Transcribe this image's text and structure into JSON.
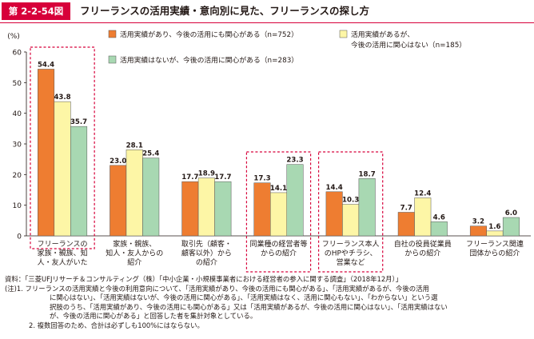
{
  "figure": {
    "number": "第 2-2-54図",
    "title": "フリーランスの活用実績・意向別に見た、フリーランスの探し方"
  },
  "chart_data": {
    "type": "bar",
    "ylabel": "(%)",
    "ylim": [
      0,
      60
    ],
    "yticks": [
      0,
      10,
      20,
      30,
      40,
      50,
      60
    ],
    "grid": false,
    "legend_placement": "top-right",
    "categories": [
      [
        "フリーランスの",
        "家族・親族、知",
        "人・友人がいた"
      ],
      [
        "家族・親族、",
        "知人・友人からの",
        "紹介"
      ],
      [
        "取引先（顧客・",
        "顧客以外）から",
        "の紹介"
      ],
      [
        "同業種の経営者等",
        "からの紹介"
      ],
      [
        "フリーランス本人",
        "のHPやチラシ、",
        "営業など"
      ],
      [
        "自社の役員従業員",
        "からの紹介"
      ],
      [
        "フリーランス関連",
        "団体からの紹介"
      ]
    ],
    "series": [
      {
        "name": "活用実績があり、今後の活用にも関心がある（n=752）",
        "color": "#ee7d31",
        "values": [
          54.4,
          23.0,
          17.7,
          17.3,
          14.4,
          7.7,
          3.2
        ]
      },
      {
        "name": "活用実績があるが、今後の活用に関心はない（n=185）",
        "color": "#fdf6a6",
        "values": [
          43.8,
          28.1,
          18.9,
          14.1,
          10.3,
          12.4,
          1.6
        ]
      },
      {
        "name": "活用実績はないが、今後の活用に関心がある（n=283）",
        "color": "#a8d8b2",
        "values": [
          35.7,
          25.4,
          17.7,
          23.3,
          18.7,
          4.6,
          6.0
        ]
      }
    ],
    "legend": [
      [
        "活用実績があり、今後の活用にも関心がある（n=752）"
      ],
      [
        "活用実績があるが、",
        "今後の活用に関心はない（n=185）"
      ],
      [
        "活用実績はないが、今後の活用に関心がある（n=283）"
      ]
    ],
    "highlighted_categories": [
      0,
      3,
      4
    ],
    "highlight_color": "#d7003a"
  },
  "notes": {
    "source": "資料：「三菱UFJリサーチ＆コンサルティング（株）「中小企業・小規模事業者における経営者の参入に関する調査」（2018年12月）」",
    "note1_lines": [
      "(注)1. フリーランスの活用実績と今後の利用意向について、「活用実績があり、今後の活用にも関心がある」、「活用実績があるが、今後の活用",
      "に関心はない」、「活用実績はないが、今後の活用に関心がある」、「活用実績はなく、活用に関心もない」、「わからない」という選",
      "択肢のうち、「活用実績があり、今後の活用にも関心がある」又は「活用実績があるが、今後の活用に関心はない」、「活用実績はない",
      "が、今後の活用に関心がある」と回答した者を集計対象としている。"
    ],
    "note2": "2. 複数回答のため、合計は必ずしも100%にはならない。"
  }
}
